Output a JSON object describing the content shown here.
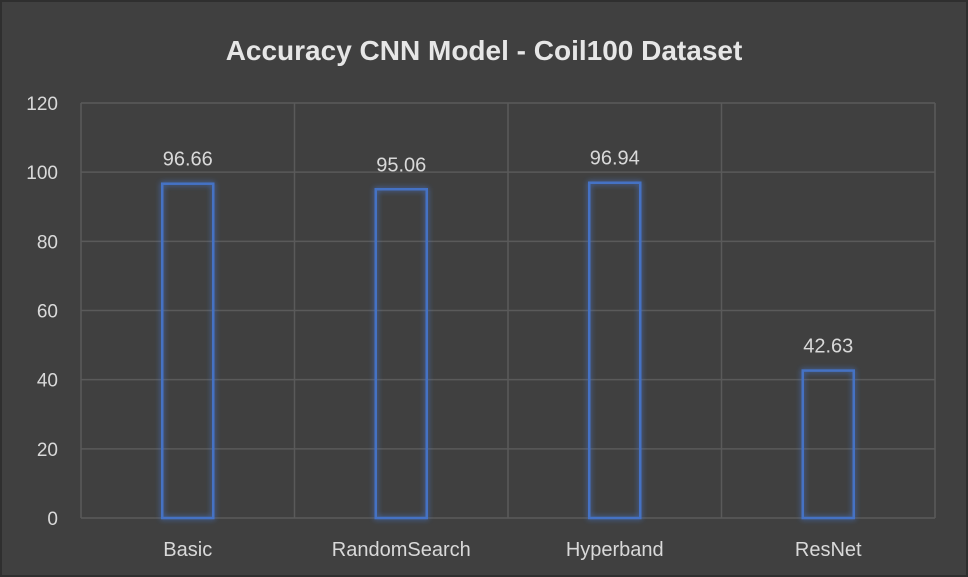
{
  "colors": {
    "background": "#404040",
    "gridline": "#5a5a5a",
    "bar_outline": "#4472c4",
    "bar_glow": "#2f5fb3",
    "text": "#d9d9d9",
    "title": "#e6e6e6"
  },
  "chart_data": {
    "type": "bar",
    "title": "Accuracy CNN Model - Coil100 Dataset",
    "xlabel": "",
    "ylabel": "",
    "categories": [
      "Basic",
      "RandomSearch",
      "Hyperband",
      "ResNet"
    ],
    "values": [
      96.66,
      95.06,
      96.94,
      42.63
    ],
    "value_labels": [
      "96.66",
      "95.06",
      "96.94",
      "42.63"
    ],
    "ylim": [
      0,
      120
    ],
    "yticks": [
      0,
      20,
      40,
      60,
      80,
      100,
      120
    ],
    "ytick_labels": [
      "0",
      "20",
      "40",
      "60",
      "80",
      "100",
      "120"
    ],
    "grid": true,
    "vertical_grid": true,
    "legend": "none",
    "bar_style": "outline-glow"
  }
}
